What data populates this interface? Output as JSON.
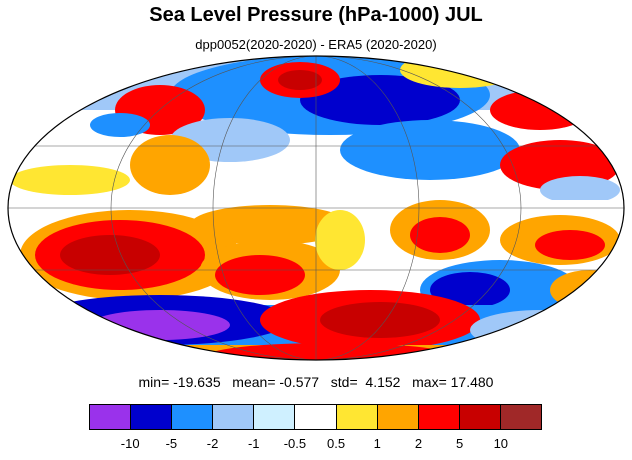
{
  "title": "Sea Level Pressure (hPa-1000) JUL",
  "subtitle": "dpp0052(2020-2020) - ERA5 (2020-2020)",
  "stats": {
    "min_label": "min=",
    "min": "-19.635",
    "mean_label": "mean=",
    "mean": "-0.577",
    "std_label": "std=",
    "std": "4.152",
    "max_label": "max=",
    "max": "17.480"
  },
  "colorbar": {
    "colors": [
      "#9a32eb",
      "#0000cd",
      "#1e90ff",
      "#a0c8f8",
      "#cff0ff",
      "#ffffff",
      "#ffe632",
      "#ffa500",
      "#ff0000",
      "#c80000",
      "#a02828"
    ],
    "labels": [
      "-10",
      "-5",
      "-2",
      "-1",
      "-0.5",
      "0.5",
      "1",
      "2",
      "5",
      "10"
    ]
  }
}
